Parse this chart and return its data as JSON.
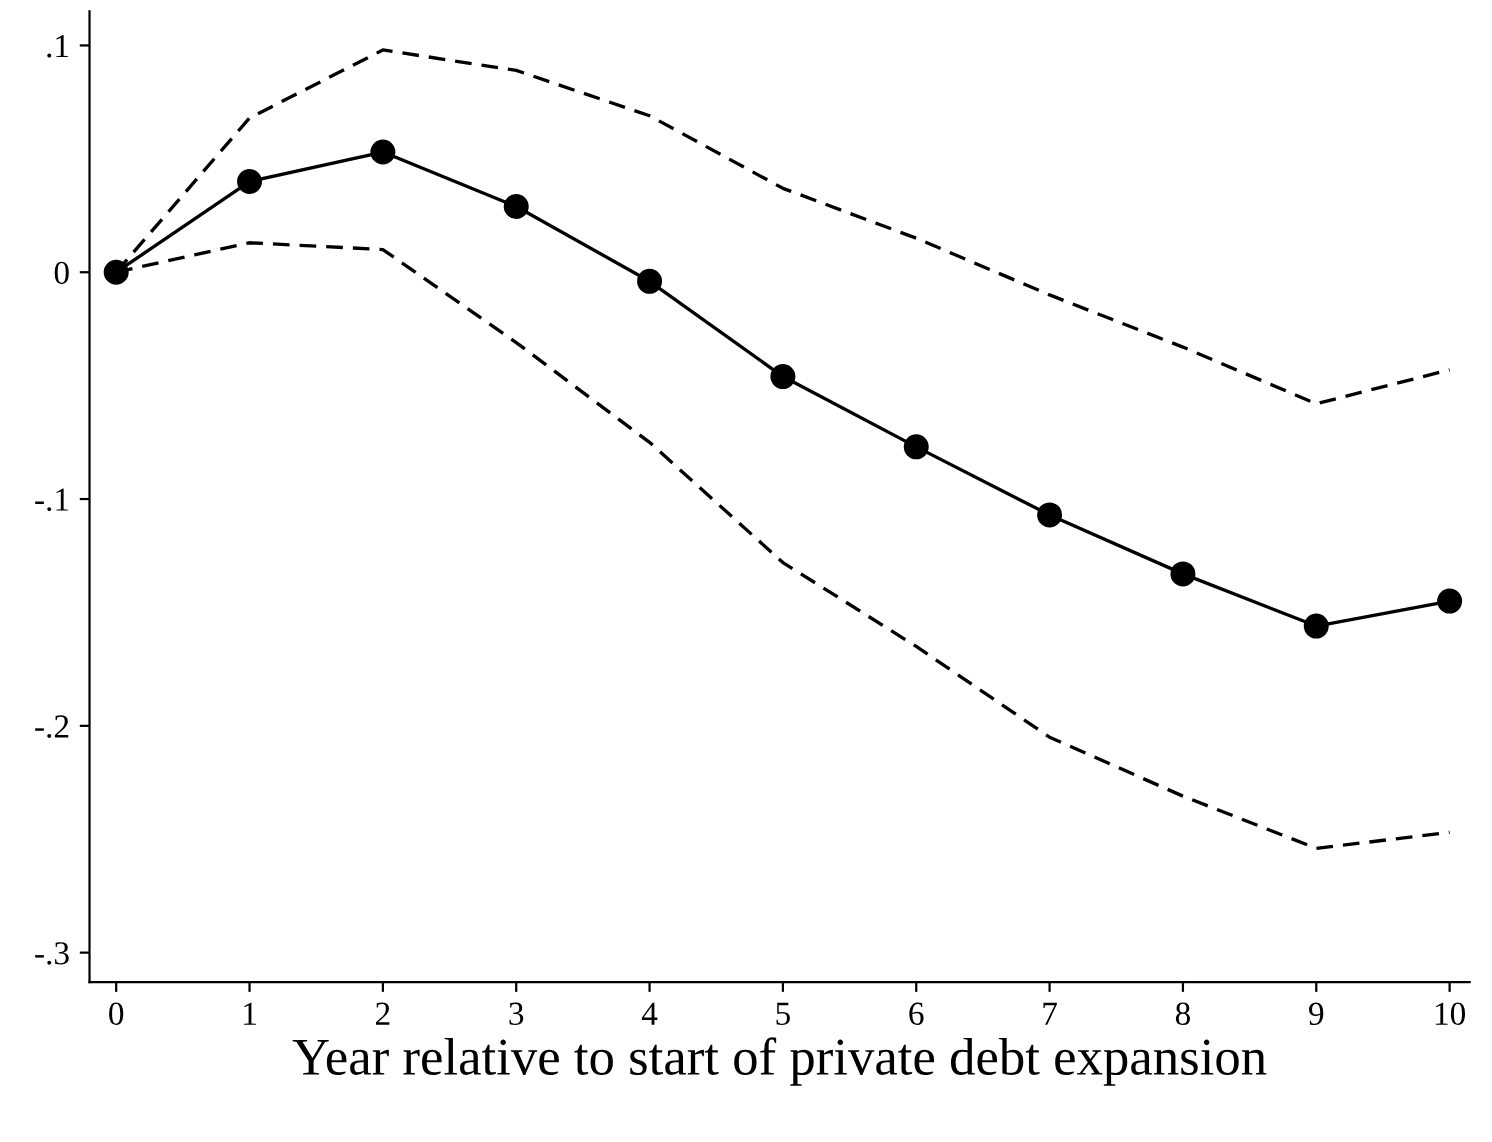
{
  "chart_data": {
    "type": "line",
    "xlabel": "Year relative to start of private debt expansion",
    "x": [
      0,
      1,
      2,
      3,
      4,
      5,
      6,
      7,
      8,
      9,
      10
    ],
    "series": [
      {
        "color": "#000000",
        "marker": "circle",
        "line_style": "solid",
        "values": [
          0,
          0.04,
          0.053,
          0.029,
          -0.004,
          -0.046,
          -0.077,
          -0.107,
          -0.133,
          -0.156,
          -0.145
        ]
      },
      {
        "color": "#000000",
        "marker": "none",
        "line_style": "dashed",
        "values": [
          0,
          0.068,
          0.098,
          0.089,
          0.069,
          0.037,
          0.015,
          -0.01,
          -0.033,
          -0.058,
          -0.043
        ]
      },
      {
        "color": "#000000",
        "marker": "none",
        "line_style": "dashed",
        "values": [
          0,
          0.013,
          0.01,
          -0.031,
          -0.075,
          -0.128,
          -0.165,
          -0.205,
          -0.231,
          -0.254,
          -0.247
        ]
      }
    ],
    "xlim": [
      -0.2,
      10.15
    ],
    "ylim": [
      -0.313,
      0.115
    ],
    "xticks": [
      0,
      1,
      2,
      3,
      4,
      5,
      6,
      7,
      8,
      9,
      10
    ],
    "yticks": [
      {
        "value": 0.1,
        "label": ".1"
      },
      0,
      {
        "value": -0.1,
        "label": "-.1"
      },
      {
        "value": -0.2,
        "label": "-.2"
      },
      {
        "value": -0.3,
        "label": "-.3"
      }
    ],
    "grid": false,
    "legend": false
  }
}
